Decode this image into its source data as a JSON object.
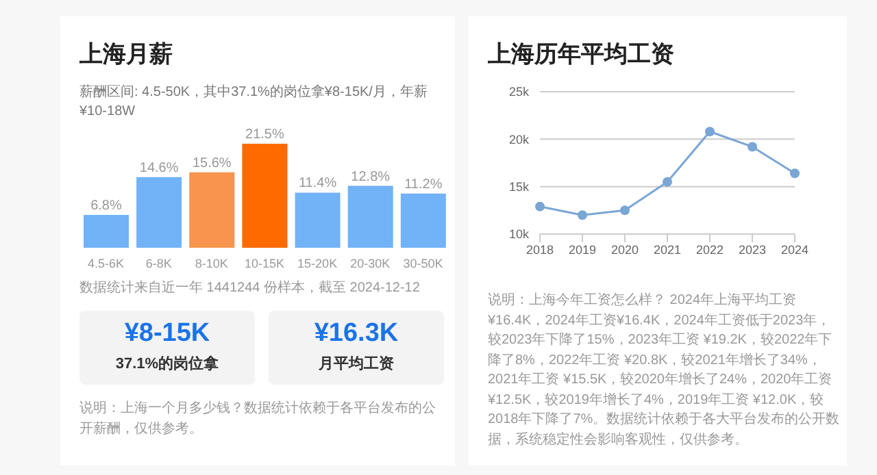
{
  "chart_data": [
    {
      "type": "bar",
      "title": "上海月薪",
      "subtitle": "薪酬区间: 4.5-50K，其中37.1%的岗位拿¥8-15K/月，年薪¥10-18W",
      "categories": [
        "4.5-6K",
        "6-8K",
        "8-10K",
        "10-15K",
        "15-20K",
        "20-30K",
        "30-50K"
      ],
      "values": [
        6.8,
        14.6,
        15.6,
        21.5,
        11.4,
        12.8,
        11.2
      ],
      "value_labels": [
        "6.8%",
        "14.6%",
        "15.6%",
        "21.5%",
        "11.4%",
        "12.8%",
        "11.2%"
      ],
      "colors": [
        "#72b2f6",
        "#72b2f6",
        "#f8944e",
        "#ff6a00",
        "#72b2f6",
        "#72b2f6",
        "#72b2f6"
      ],
      "annotations": [
        "数据统计来自近一年 1441244 份样本，截至 2024-12-12",
        "¥8-15K",
        "37.1%的岗位拿",
        "¥16.3K",
        "月平均工资",
        "说明：上海一个月多少钱？数据统计依赖于各平台发布的公开薪酬，仅供参考。"
      ]
    },
    {
      "type": "line",
      "title": "上海历年平均工资",
      "categories": [
        "2018",
        "2019",
        "2020",
        "2021",
        "2022",
        "2023",
        "2024"
      ],
      "series": [
        {
          "color": "#7aa6d6",
          "values": [
            12.9,
            12.0,
            12.5,
            15.5,
            20.8,
            19.2,
            16.4
          ]
        }
      ],
      "ylim": [
        10,
        25
      ],
      "yticks": [
        {
          "value": 10,
          "label": "10k"
        },
        {
          "value": 15,
          "label": "15k"
        },
        {
          "value": 20,
          "label": "20k"
        },
        {
          "value": 25,
          "label": "25k"
        }
      ],
      "grid": "y",
      "marker": "circle",
      "annotations": [
        "说明：上海今年工资怎么样？ 2024年上海平均工资 ¥16.4K，2024年工资¥16.4K，2024年工资低于2023年，较2023年下降了15%，2023年工资 ¥19.2K，较2022年下降了8%，2022年工资 ¥20.8K，较2021年增长了34%，2021年工资 ¥15.5K，较2020年增长了24%，2020年工资 ¥12.5K，较2019年增长了4%，2019年工资 ¥12.0K，较2018年下降了7%。数据统计依赖于各大平台发布的公开数据，系统稳定性会影响客观性，仅供参考。"
      ]
    }
  ]
}
